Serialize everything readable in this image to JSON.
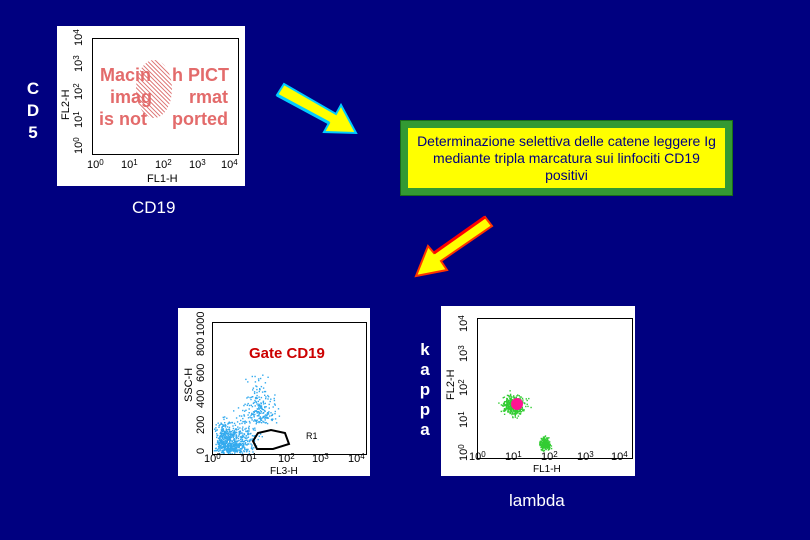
{
  "left_vertical_label": [
    "C",
    "D",
    "5"
  ],
  "top_plot": {
    "y_axis_label": "FL2-H",
    "x_axis_label": "FL1-H",
    "y_ticks": [
      "10",
      "10",
      "10",
      "10",
      "10"
    ],
    "y_exponents": [
      "0",
      "1",
      "2",
      "3",
      "4"
    ],
    "x_ticks": [
      "10",
      "10",
      "10",
      "10",
      "10"
    ],
    "x_exponents": [
      "0",
      "1",
      "2",
      "3",
      "4"
    ],
    "missing_image_text": [
      "Macin",
      "h PICT",
      "imag",
      "rmat",
      "is not",
      "ported"
    ]
  },
  "cd19_label": "CD19",
  "note_text": "Determinazione selettiva delle  catene leggere Ig mediante tripla marcatura sui linfociti CD19 positivi",
  "scatter_plot": {
    "y_axis_label": "SSC-H",
    "x_axis_label": "FL3-H",
    "y_ticks": [
      "0",
      "200",
      "400",
      "600",
      "800",
      "1000"
    ],
    "x_ticks": [
      "10",
      "10",
      "10",
      "10",
      "10"
    ],
    "x_exponents": [
      "0",
      "1",
      "2",
      "3",
      "4"
    ],
    "gate_label": "Gate CD19",
    "region_label": "R1"
  },
  "kappa_letters": [
    "k",
    "a",
    "p",
    "p",
    "a"
  ],
  "lambda_plot": {
    "y_axis_label": "FL2-H",
    "x_axis_label": "FL1-H",
    "y_ticks": [
      "10",
      "10",
      "10",
      "10",
      "10"
    ],
    "y_exponents": [
      "0",
      "1",
      "2",
      "3",
      "4"
    ],
    "x_ticks": [
      "10",
      "10",
      "10",
      "10",
      "10"
    ],
    "x_exponents": [
      "0",
      "1",
      "2",
      "3",
      "4"
    ]
  },
  "lambda_label": "lambda",
  "colors": {
    "background": "#000080",
    "note_border": "#339933",
    "note_fill": "#ffff00",
    "arrow_body": "#ffff00",
    "arrow_edge_top": "#00ccff",
    "arrow_edge_bottom": "#ff0000",
    "scatter_dots": "#33aaee",
    "lambda_dots": "#33cc33",
    "marker": "#ff1493"
  }
}
